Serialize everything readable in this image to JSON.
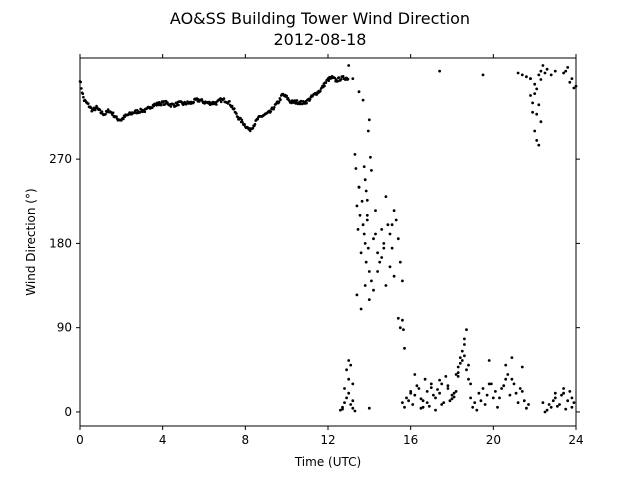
{
  "chart_data": {
    "type": "scatter",
    "title": "AO&SS Building Tower Wind Direction",
    "subtitle": "2012-08-18",
    "xlabel": "Time (UTC)",
    "ylabel": "Wind Direction (°)",
    "xlim": [
      0,
      24
    ],
    "ylim": [
      -15,
      378
    ],
    "xticks": [
      0,
      4,
      8,
      12,
      16,
      20,
      24
    ],
    "yticks": [
      0,
      90,
      180,
      270
    ],
    "grid": false,
    "marker_color": "#000000",
    "segments": [
      {
        "x": [
          0.0,
          0.1,
          0.2,
          0.4,
          0.6,
          0.8,
          1.0,
          1.2,
          1.4,
          1.6,
          1.8,
          2.0,
          2.2,
          2.4,
          2.6,
          2.8,
          3.0,
          3.2,
          3.4,
          3.6,
          3.8,
          4.0,
          4.2,
          4.4,
          4.6,
          4.8,
          5.0,
          5.2,
          5.4,
          5.6,
          5.8,
          6.0,
          6.2,
          6.4,
          6.6,
          6.8,
          7.0,
          7.2,
          7.4,
          7.6,
          7.8,
          8.0,
          8.2,
          8.4,
          8.6,
          8.8,
          9.0,
          9.2,
          9.4,
          9.6,
          9.8,
          10.0,
          10.2,
          10.4,
          10.6,
          10.8,
          11.0,
          11.2,
          11.4,
          11.6,
          11.8,
          12.0,
          12.2,
          12.4,
          12.6,
          12.8,
          13.0
        ],
        "y": [
          355,
          342,
          333,
          328,
          322,
          325,
          320,
          318,
          322,
          318,
          313,
          312,
          316,
          318,
          320,
          321,
          322,
          322,
          326,
          328,
          329,
          330,
          330,
          328,
          328,
          330,
          329,
          330,
          330,
          333,
          333,
          331,
          330,
          330,
          330,
          333,
          333,
          331,
          325,
          316,
          311,
          306,
          301,
          306,
          313,
          316,
          318,
          320,
          326,
          331,
          339,
          336,
          331,
          331,
          331,
          330,
          332,
          336,
          340,
          343,
          349,
          355,
          357,
          354,
          356,
          357,
          356
        ]
      }
    ],
    "scatter_groups": [
      {
        "x": [
          13.0,
          13.2,
          13.5,
          13.7
        ],
        "y": [
          370,
          356,
          342,
          333
        ]
      },
      {
        "x": [
          13.75,
          13.8,
          13.85,
          13.9,
          13.95,
          14.0,
          14.05,
          14.1
        ],
        "y": [
          262,
          248,
          236,
          226,
          300,
          312,
          272,
          258
        ]
      },
      {
        "x": [
          13.3,
          13.35,
          13.4,
          13.45,
          13.5,
          13.55,
          13.6,
          13.65,
          13.7,
          13.75,
          13.8,
          13.85,
          13.9,
          13.95,
          14.0,
          14.1,
          14.2,
          14.3,
          14.4,
          14.5,
          14.6,
          14.7,
          14.8,
          14.9,
          15.0,
          15.1,
          15.2,
          15.3,
          15.4,
          15.5,
          15.6,
          13.4,
          13.6,
          13.8,
          14.0,
          14.2,
          14.4,
          14.6,
          14.8,
          15.0,
          15.2,
          15.4,
          13.5,
          13.9,
          14.3,
          14.7,
          15.1,
          15.5
        ],
        "y": [
          275,
          260,
          220,
          195,
          240,
          210,
          170,
          225,
          200,
          190,
          180,
          160,
          205,
          175,
          150,
          140,
          185,
          215,
          170,
          160,
          195,
          180,
          230,
          200,
          190,
          175,
          215,
          205,
          185,
          160,
          140,
          125,
          110,
          135,
          120,
          130,
          150,
          165,
          135,
          155,
          145,
          100,
          240,
          210,
          190,
          175,
          200,
          90
        ]
      },
      {
        "x": [
          15.6,
          15.65,
          15.7
        ],
        "y": [
          98,
          88,
          68
        ]
      },
      {
        "x": [
          12.6,
          12.7,
          12.8,
          12.9,
          13.0,
          13.1,
          13.2,
          13.3,
          12.8,
          13.0,
          13.2,
          12.9,
          13.1,
          13.0,
          12.7,
          13.2,
          14.0
        ],
        "y": [
          2,
          5,
          10,
          15,
          20,
          8,
          4,
          1,
          25,
          35,
          30,
          45,
          50,
          55,
          3,
          12,
          4
        ]
      },
      {
        "x": [
          15.6,
          15.8,
          16.0,
          16.2,
          16.4,
          16.6,
          16.8,
          17.0,
          17.2,
          17.4,
          17.6,
          17.8,
          18.0,
          18.2,
          15.7,
          15.9,
          16.1,
          16.3,
          16.5,
          16.7,
          16.9,
          17.1,
          17.3,
          17.5,
          17.7,
          17.9,
          18.1,
          16.0,
          16.5,
          17.0,
          17.5,
          18.0,
          16.2,
          16.8,
          17.4,
          18.1,
          16.6,
          17.2,
          17.8,
          18.3
        ],
        "y": [
          10,
          15,
          20,
          18,
          25,
          12,
          22,
          30,
          15,
          20,
          10,
          25,
          18,
          22,
          5,
          12,
          8,
          28,
          14,
          35,
          6,
          18,
          24,
          8,
          38,
          12,
          16,
          22,
          4,
          26,
          30,
          14,
          40,
          10,
          34,
          20,
          5,
          2,
          28,
          42
        ]
      },
      {
        "x": [
          18.2,
          18.3,
          18.4,
          18.5,
          18.6,
          18.7,
          18.8,
          18.9,
          18.5,
          18.6,
          18.7,
          18.4,
          18.6,
          18.8,
          18.3
        ],
        "y": [
          40,
          48,
          52,
          55,
          60,
          45,
          35,
          30,
          65,
          78,
          88,
          58,
          72,
          50,
          38
        ]
      },
      {
        "x": [
          18.9,
          19.1,
          19.3,
          19.5,
          19.7,
          19.9,
          20.1,
          20.3,
          20.5,
          20.7,
          20.9,
          21.1,
          21.3,
          21.5,
          21.7,
          19.0,
          19.2,
          19.4,
          19.6,
          19.8,
          20.0,
          20.2,
          20.4,
          20.6,
          20.8,
          21.0,
          21.2,
          21.4,
          21.6,
          19.8,
          20.6,
          20.9,
          21.4
        ],
        "y": [
          15,
          10,
          20,
          25,
          18,
          30,
          22,
          15,
          28,
          40,
          35,
          20,
          25,
          12,
          8,
          5,
          2,
          12,
          8,
          30,
          15,
          5,
          25,
          35,
          18,
          30,
          10,
          22,
          4,
          55,
          50,
          58,
          48
        ]
      },
      {
        "x": [
          22.4,
          22.6,
          22.8,
          23.0,
          23.2,
          23.4,
          23.6,
          23.8,
          22.5,
          22.7,
          22.9,
          23.1,
          23.3,
          23.5,
          23.7,
          23.9,
          23.0,
          23.4,
          23.8
        ],
        "y": [
          10,
          2,
          5,
          15,
          8,
          20,
          12,
          5,
          0,
          8,
          12,
          6,
          18,
          3,
          22,
          10,
          20,
          25,
          15
        ]
      },
      {
        "x": [
          21.8,
          21.9,
          22.0,
          22.1,
          22.2,
          22.3,
          22.4,
          21.9,
          22.0,
          22.1,
          22.2,
          22.3,
          22.0,
          22.1,
          21.8,
          22.2
        ],
        "y": [
          338,
          330,
          350,
          345,
          360,
          355,
          370,
          320,
          300,
          290,
          285,
          310,
          340,
          318,
          356,
          328
        ]
      },
      {
        "x": [
          21.2,
          21.4,
          21.6,
          21.8,
          22.3,
          22.5,
          22.6,
          22.8,
          23.0,
          23.4,
          23.6,
          23.8,
          24.0,
          23.7,
          23.9,
          23.5,
          17.4,
          19.5
        ],
        "y": [
          362,
          360,
          358,
          356,
          364,
          362,
          366,
          360,
          364,
          362,
          368,
          356,
          348,
          352,
          346,
          364,
          364,
          360
        ]
      }
    ]
  }
}
